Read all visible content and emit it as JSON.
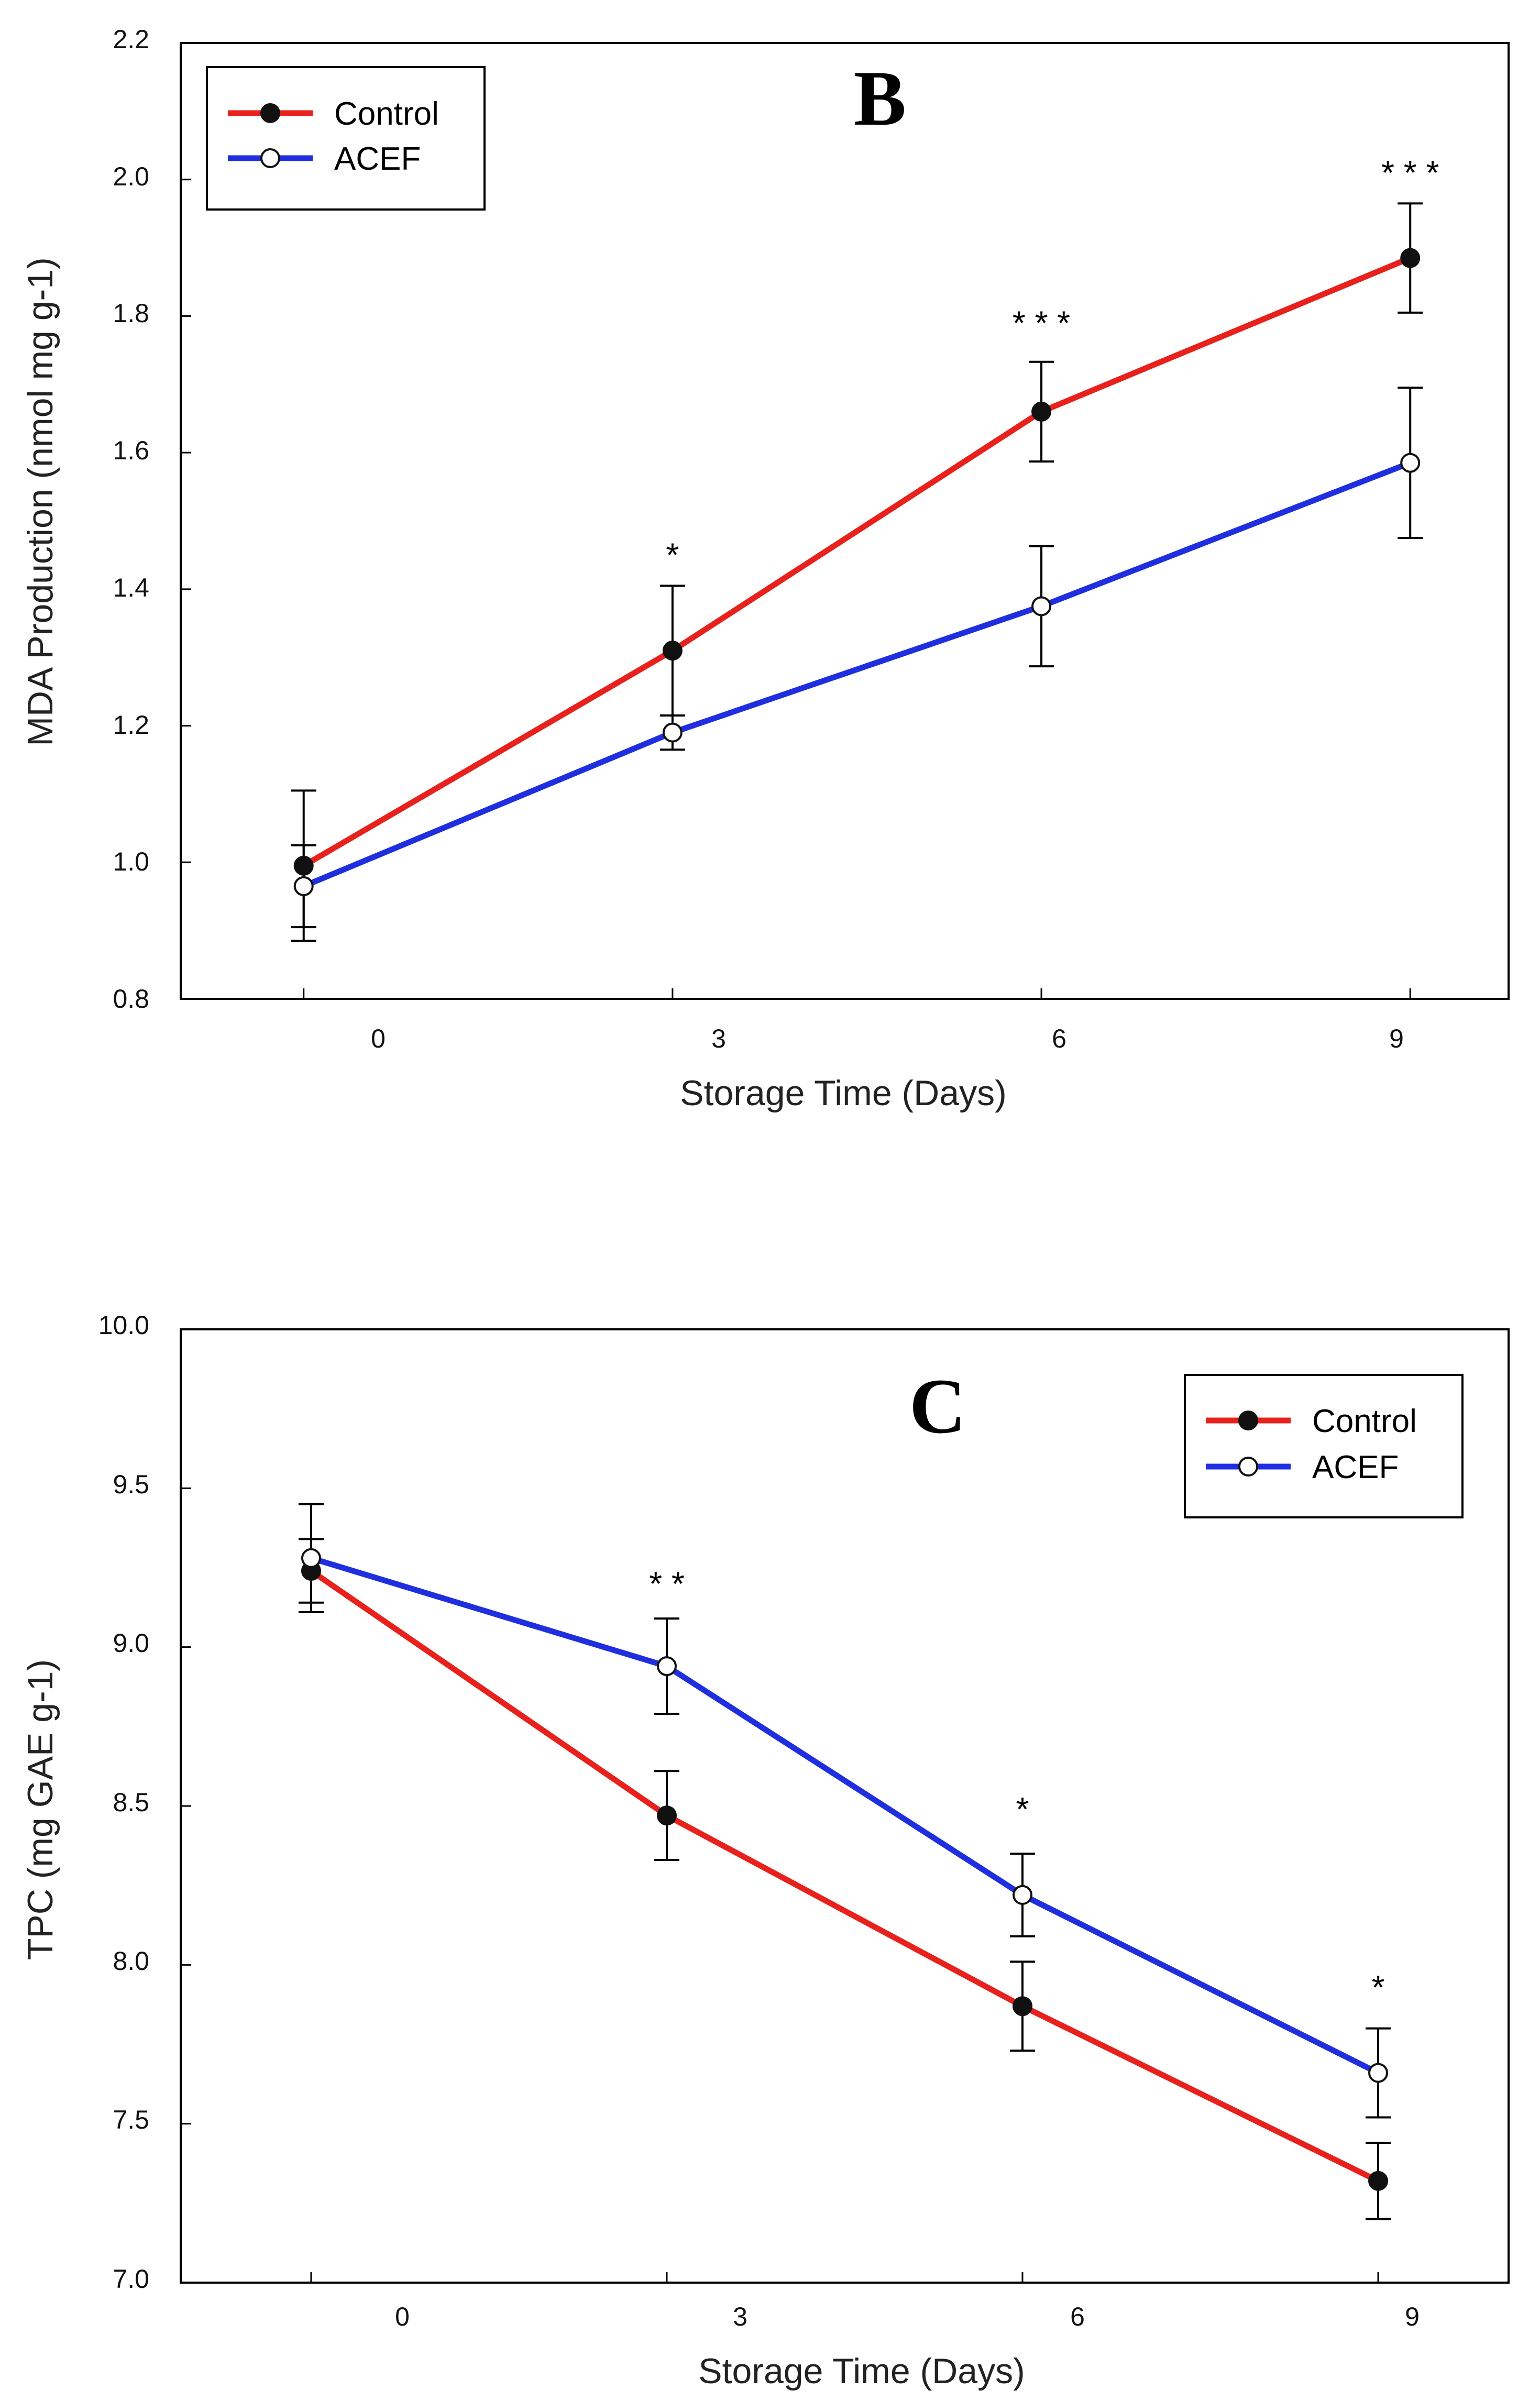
{
  "chart_data": [
    {
      "type": "line",
      "panel_label": "B",
      "title": "",
      "xlabel": "Storage Time (Days)",
      "ylabel": "MDA Production (nmol mg g-1)",
      "categories": [
        "0",
        "3",
        "6",
        "9"
      ],
      "x": [
        0,
        3,
        6,
        9
      ],
      "xlim": [
        -1,
        9.8
      ],
      "ylim": [
        0.8,
        2.2
      ],
      "yticks": [
        "0.8",
        "1.0",
        "1.2",
        "1.4",
        "1.6",
        "1.8",
        "2.0",
        "2.2"
      ],
      "grid": false,
      "legend_position": "top-left",
      "series": [
        {
          "name": "Control",
          "color": "#e8211d",
          "marker": "filled-circle",
          "x": [
            0,
            3,
            6,
            9
          ],
          "values": [
            0.995,
            1.31,
            1.66,
            1.885
          ],
          "errors": [
            0.11,
            0.095,
            0.073,
            0.08
          ]
        },
        {
          "name": "ACEF",
          "color": "#1f2fe0",
          "marker": "open-circle",
          "x": [
            0,
            3,
            6,
            9
          ],
          "values": [
            0.965,
            1.19,
            1.375,
            1.585
          ],
          "errors": [
            0.06,
            0.025,
            0.088,
            0.11
          ]
        }
      ],
      "annotations": [
        {
          "text": "*",
          "x": 3,
          "y": 1.45
        },
        {
          "text": "* * *",
          "x": 6,
          "y": 1.79
        },
        {
          "text": "* * *",
          "x": 9,
          "y": 2.01
        }
      ]
    },
    {
      "type": "line",
      "panel_label": "C",
      "title": "",
      "xlabel": "Storage Time (Days)",
      "ylabel": "TPC (mg GAE g-1)",
      "categories": [
        "0",
        "3",
        "6",
        "9"
      ],
      "x": [
        0,
        3,
        6,
        9
      ],
      "xlim": [
        -1.1,
        10.1
      ],
      "ylim": [
        7.0,
        10.0
      ],
      "yticks": [
        "7.0",
        "7.5",
        "8.0",
        "8.5",
        "9.0",
        "9.5",
        "10.0"
      ],
      "grid": false,
      "legend_position": "top-right",
      "series": [
        {
          "name": "Control",
          "color": "#e8211d",
          "marker": "filled-circle",
          "x": [
            0,
            3,
            6,
            9
          ],
          "values": [
            9.24,
            8.47,
            7.87,
            7.32
          ],
          "errors": [
            0.1,
            0.14,
            0.14,
            0.12
          ]
        },
        {
          "name": "ACEF",
          "color": "#1f2fe0",
          "marker": "open-circle",
          "x": [
            0,
            3,
            6,
            9
          ],
          "values": [
            9.28,
            8.94,
            8.22,
            7.66
          ],
          "errors": [
            0.17,
            0.15,
            0.13,
            0.14
          ]
        }
      ],
      "annotations": [
        {
          "text": "* *",
          "x": 3,
          "y": 9.2
        },
        {
          "text": "*",
          "x": 6,
          "y": 8.49
        },
        {
          "text": "*",
          "x": 9,
          "y": 7.93
        }
      ]
    }
  ]
}
